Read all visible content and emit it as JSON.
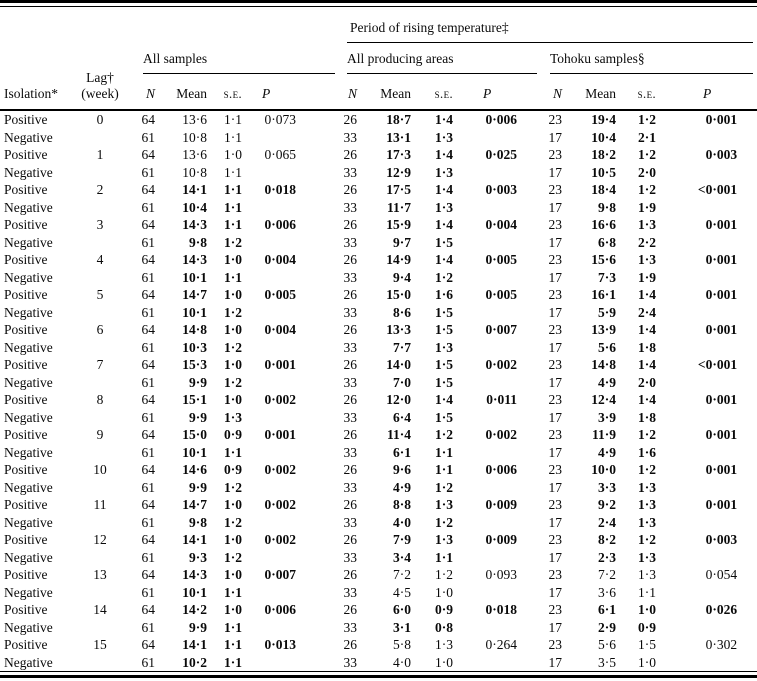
{
  "table": {
    "group_headers": {
      "period": "Period of rising temperature‡",
      "all_samples": "All samples",
      "producing": "All producing areas",
      "tohoku": "Tohoku samples§"
    },
    "col_headers": {
      "isolation": "Isolation*",
      "lag_line1": "Lag†",
      "lag_line2": "(week)",
      "n": "N",
      "mean": "Mean",
      "se": "s.e.",
      "p": "P"
    },
    "rows": [
      {
        "isolation": "Positive",
        "lag": "0",
        "all": {
          "n": "64",
          "mean": "13·6",
          "se": "1·1",
          "p": "0·073"
        },
        "producing": {
          "n": "26",
          "mean": "18·7",
          "se": "1·4",
          "p": "0·006"
        },
        "tohoku": {
          "n": "23",
          "mean": "19·4",
          "se": "1·2",
          "p": "0·001"
        },
        "bold": {
          "all": false,
          "producing": true,
          "tohoku": true
        }
      },
      {
        "isolation": "Negative",
        "lag": "",
        "all": {
          "n": "61",
          "mean": "10·8",
          "se": "1·1",
          "p": ""
        },
        "producing": {
          "n": "33",
          "mean": "13·1",
          "se": "1·3",
          "p": ""
        },
        "tohoku": {
          "n": "17",
          "mean": "10·4",
          "se": "2·1",
          "p": ""
        },
        "bold": {
          "all": false,
          "producing": true,
          "tohoku": true
        }
      },
      {
        "isolation": "Positive",
        "lag": "1",
        "all": {
          "n": "64",
          "mean": "13·6",
          "se": "1·0",
          "p": "0·065"
        },
        "producing": {
          "n": "26",
          "mean": "17·3",
          "se": "1·4",
          "p": "0·025"
        },
        "tohoku": {
          "n": "23",
          "mean": "18·2",
          "se": "1·2",
          "p": "0·003"
        },
        "bold": {
          "all": false,
          "producing": true,
          "tohoku": true
        }
      },
      {
        "isolation": "Negative",
        "lag": "",
        "all": {
          "n": "61",
          "mean": "10·8",
          "se": "1·1",
          "p": ""
        },
        "producing": {
          "n": "33",
          "mean": "12·9",
          "se": "1·3",
          "p": ""
        },
        "tohoku": {
          "n": "17",
          "mean": "10·5",
          "se": "2·0",
          "p": ""
        },
        "bold": {
          "all": false,
          "producing": true,
          "tohoku": true
        }
      },
      {
        "isolation": "Positive",
        "lag": "2",
        "all": {
          "n": "64",
          "mean": "14·1",
          "se": "1·1",
          "p": "0·018"
        },
        "producing": {
          "n": "26",
          "mean": "17·5",
          "se": "1·4",
          "p": "0·003"
        },
        "tohoku": {
          "n": "23",
          "mean": "18·4",
          "se": "1·2",
          "p": "<0·001"
        },
        "bold": {
          "all": true,
          "producing": true,
          "tohoku": true
        }
      },
      {
        "isolation": "Negative",
        "lag": "",
        "all": {
          "n": "61",
          "mean": "10·4",
          "se": "1·1",
          "p": ""
        },
        "producing": {
          "n": "33",
          "mean": "11·7",
          "se": "1·3",
          "p": ""
        },
        "tohoku": {
          "n": "17",
          "mean": "9·8",
          "se": "1·9",
          "p": ""
        },
        "bold": {
          "all": true,
          "producing": true,
          "tohoku": true
        }
      },
      {
        "isolation": "Positive",
        "lag": "3",
        "all": {
          "n": "64",
          "mean": "14·3",
          "se": "1·1",
          "p": "0·006"
        },
        "producing": {
          "n": "26",
          "mean": "15·9",
          "se": "1·4",
          "p": "0·004"
        },
        "tohoku": {
          "n": "23",
          "mean": "16·6",
          "se": "1·3",
          "p": "0·001"
        },
        "bold": {
          "all": true,
          "producing": true,
          "tohoku": true
        }
      },
      {
        "isolation": "Negative",
        "lag": "",
        "all": {
          "n": "61",
          "mean": "9·8",
          "se": "1·2",
          "p": ""
        },
        "producing": {
          "n": "33",
          "mean": "9·7",
          "se": "1·5",
          "p": ""
        },
        "tohoku": {
          "n": "17",
          "mean": "6·8",
          "se": "2·2",
          "p": ""
        },
        "bold": {
          "all": true,
          "producing": true,
          "tohoku": true
        }
      },
      {
        "isolation": "Positive",
        "lag": "4",
        "all": {
          "n": "64",
          "mean": "14·3",
          "se": "1·0",
          "p": "0·004"
        },
        "producing": {
          "n": "26",
          "mean": "14·9",
          "se": "1·4",
          "p": "0·005"
        },
        "tohoku": {
          "n": "23",
          "mean": "15·6",
          "se": "1·3",
          "p": "0·001"
        },
        "bold": {
          "all": true,
          "producing": true,
          "tohoku": true
        }
      },
      {
        "isolation": "Negative",
        "lag": "",
        "all": {
          "n": "61",
          "mean": "10·1",
          "se": "1·1",
          "p": ""
        },
        "producing": {
          "n": "33",
          "mean": "9·4",
          "se": "1·2",
          "p": ""
        },
        "tohoku": {
          "n": "17",
          "mean": "7·3",
          "se": "1·9",
          "p": ""
        },
        "bold": {
          "all": true,
          "producing": true,
          "tohoku": true
        }
      },
      {
        "isolation": "Positive",
        "lag": "5",
        "all": {
          "n": "64",
          "mean": "14·7",
          "se": "1·0",
          "p": "0·005"
        },
        "producing": {
          "n": "26",
          "mean": "15·0",
          "se": "1·6",
          "p": "0·005"
        },
        "tohoku": {
          "n": "23",
          "mean": "16·1",
          "se": "1·4",
          "p": "0·001"
        },
        "bold": {
          "all": true,
          "producing": true,
          "tohoku": true
        }
      },
      {
        "isolation": "Negative",
        "lag": "",
        "all": {
          "n": "61",
          "mean": "10·1",
          "se": "1·2",
          "p": ""
        },
        "producing": {
          "n": "33",
          "mean": "8·6",
          "se": "1·5",
          "p": ""
        },
        "tohoku": {
          "n": "17",
          "mean": "5·9",
          "se": "2·4",
          "p": ""
        },
        "bold": {
          "all": true,
          "producing": true,
          "tohoku": true
        }
      },
      {
        "isolation": "Positive",
        "lag": "6",
        "all": {
          "n": "64",
          "mean": "14·8",
          "se": "1·0",
          "p": "0·004"
        },
        "producing": {
          "n": "26",
          "mean": "13·3",
          "se": "1·5",
          "p": "0·007"
        },
        "tohoku": {
          "n": "23",
          "mean": "13·9",
          "se": "1·4",
          "p": "0·001"
        },
        "bold": {
          "all": true,
          "producing": true,
          "tohoku": true
        }
      },
      {
        "isolation": "Negative",
        "lag": "",
        "all": {
          "n": "61",
          "mean": "10·3",
          "se": "1·2",
          "p": ""
        },
        "producing": {
          "n": "33",
          "mean": "7·7",
          "se": "1·3",
          "p": ""
        },
        "tohoku": {
          "n": "17",
          "mean": "5·6",
          "se": "1·8",
          "p": ""
        },
        "bold": {
          "all": true,
          "producing": true,
          "tohoku": true
        }
      },
      {
        "isolation": "Positive",
        "lag": "7",
        "all": {
          "n": "64",
          "mean": "15·3",
          "se": "1·0",
          "p": "0·001"
        },
        "producing": {
          "n": "26",
          "mean": "14·0",
          "se": "1·5",
          "p": "0·002"
        },
        "tohoku": {
          "n": "23",
          "mean": "14·8",
          "se": "1·4",
          "p": "<0·001"
        },
        "bold": {
          "all": true,
          "producing": true,
          "tohoku": true
        }
      },
      {
        "isolation": "Negative",
        "lag": "",
        "all": {
          "n": "61",
          "mean": "9·9",
          "se": "1·2",
          "p": ""
        },
        "producing": {
          "n": "33",
          "mean": "7·0",
          "se": "1·5",
          "p": ""
        },
        "tohoku": {
          "n": "17",
          "mean": "4·9",
          "se": "2·0",
          "p": ""
        },
        "bold": {
          "all": true,
          "producing": true,
          "tohoku": true
        }
      },
      {
        "isolation": "Positive",
        "lag": "8",
        "all": {
          "n": "64",
          "mean": "15·1",
          "se": "1·0",
          "p": "0·002"
        },
        "producing": {
          "n": "26",
          "mean": "12·0",
          "se": "1·4",
          "p": "0·011"
        },
        "tohoku": {
          "n": "23",
          "mean": "12·4",
          "se": "1·4",
          "p": "0·001"
        },
        "bold": {
          "all": true,
          "producing": true,
          "tohoku": true
        }
      },
      {
        "isolation": "Negative",
        "lag": "",
        "all": {
          "n": "61",
          "mean": "9·9",
          "se": "1·3",
          "p": ""
        },
        "producing": {
          "n": "33",
          "mean": "6·4",
          "se": "1·5",
          "p": ""
        },
        "tohoku": {
          "n": "17",
          "mean": "3·9",
          "se": "1·8",
          "p": ""
        },
        "bold": {
          "all": true,
          "producing": true,
          "tohoku": true
        }
      },
      {
        "isolation": "Positive",
        "lag": "9",
        "all": {
          "n": "64",
          "mean": "15·0",
          "se": "0·9",
          "p": "0·001"
        },
        "producing": {
          "n": "26",
          "mean": "11·4",
          "se": "1·2",
          "p": "0·002"
        },
        "tohoku": {
          "n": "23",
          "mean": "11·9",
          "se": "1·2",
          "p": "0·001"
        },
        "bold": {
          "all": true,
          "producing": true,
          "tohoku": true
        }
      },
      {
        "isolation": "Negative",
        "lag": "",
        "all": {
          "n": "61",
          "mean": "10·1",
          "se": "1·1",
          "p": ""
        },
        "producing": {
          "n": "33",
          "mean": "6·1",
          "se": "1·1",
          "p": ""
        },
        "tohoku": {
          "n": "17",
          "mean": "4·9",
          "se": "1·6",
          "p": ""
        },
        "bold": {
          "all": true,
          "producing": true,
          "tohoku": true
        }
      },
      {
        "isolation": "Positive",
        "lag": "10",
        "all": {
          "n": "64",
          "mean": "14·6",
          "se": "0·9",
          "p": "0·002"
        },
        "producing": {
          "n": "26",
          "mean": "9·6",
          "se": "1·1",
          "p": "0·006"
        },
        "tohoku": {
          "n": "23",
          "mean": "10·0",
          "se": "1·2",
          "p": "0·001"
        },
        "bold": {
          "all": true,
          "producing": true,
          "tohoku": true
        }
      },
      {
        "isolation": "Negative",
        "lag": "",
        "all": {
          "n": "61",
          "mean": "9·9",
          "se": "1·2",
          "p": ""
        },
        "producing": {
          "n": "33",
          "mean": "4·9",
          "se": "1·2",
          "p": ""
        },
        "tohoku": {
          "n": "17",
          "mean": "3·3",
          "se": "1·3",
          "p": ""
        },
        "bold": {
          "all": true,
          "producing": true,
          "tohoku": true
        }
      },
      {
        "isolation": "Positive",
        "lag": "11",
        "all": {
          "n": "64",
          "mean": "14·7",
          "se": "1·0",
          "p": "0·002"
        },
        "producing": {
          "n": "26",
          "mean": "8·8",
          "se": "1·3",
          "p": "0·009"
        },
        "tohoku": {
          "n": "23",
          "mean": "9·2",
          "se": "1·3",
          "p": "0·001"
        },
        "bold": {
          "all": true,
          "producing": true,
          "tohoku": true
        }
      },
      {
        "isolation": "Negative",
        "lag": "",
        "all": {
          "n": "61",
          "mean": "9·8",
          "se": "1·2",
          "p": ""
        },
        "producing": {
          "n": "33",
          "mean": "4·0",
          "se": "1·2",
          "p": ""
        },
        "tohoku": {
          "n": "17",
          "mean": "2·4",
          "se": "1·3",
          "p": ""
        },
        "bold": {
          "all": true,
          "producing": true,
          "tohoku": true
        }
      },
      {
        "isolation": "Positive",
        "lag": "12",
        "all": {
          "n": "64",
          "mean": "14·1",
          "se": "1·0",
          "p": "0·002"
        },
        "producing": {
          "n": "26",
          "mean": "7·9",
          "se": "1·3",
          "p": "0·009"
        },
        "tohoku": {
          "n": "23",
          "mean": "8·2",
          "se": "1·2",
          "p": "0·003"
        },
        "bold": {
          "all": true,
          "producing": true,
          "tohoku": true
        }
      },
      {
        "isolation": "Negative",
        "lag": "",
        "all": {
          "n": "61",
          "mean": "9·3",
          "se": "1·2",
          "p": ""
        },
        "producing": {
          "n": "33",
          "mean": "3·4",
          "se": "1·1",
          "p": ""
        },
        "tohoku": {
          "n": "17",
          "mean": "2·3",
          "se": "1·3",
          "p": ""
        },
        "bold": {
          "all": true,
          "producing": true,
          "tohoku": true
        }
      },
      {
        "isolation": "Positive",
        "lag": "13",
        "all": {
          "n": "64",
          "mean": "14·3",
          "se": "1·0",
          "p": "0·007"
        },
        "producing": {
          "n": "26",
          "mean": "7·2",
          "se": "1·2",
          "p": "0·093"
        },
        "tohoku": {
          "n": "23",
          "mean": "7·2",
          "se": "1·3",
          "p": "0·054"
        },
        "bold": {
          "all": true,
          "producing": false,
          "tohoku": false
        }
      },
      {
        "isolation": "Negative",
        "lag": "",
        "all": {
          "n": "61",
          "mean": "10·1",
          "se": "1·1",
          "p": ""
        },
        "producing": {
          "n": "33",
          "mean": "4·5",
          "se": "1·0",
          "p": ""
        },
        "tohoku": {
          "n": "17",
          "mean": "3·6",
          "se": "1·1",
          "p": ""
        },
        "bold": {
          "all": true,
          "producing": false,
          "tohoku": false
        }
      },
      {
        "isolation": "Positive",
        "lag": "14",
        "all": {
          "n": "64",
          "mean": "14·2",
          "se": "1·0",
          "p": "0·006"
        },
        "producing": {
          "n": "26",
          "mean": "6·0",
          "se": "0·9",
          "p": "0·018"
        },
        "tohoku": {
          "n": "23",
          "mean": "6·1",
          "se": "1·0",
          "p": "0·026"
        },
        "bold": {
          "all": true,
          "producing": true,
          "tohoku": true
        }
      },
      {
        "isolation": "Negative",
        "lag": "",
        "all": {
          "n": "61",
          "mean": "9·9",
          "se": "1·1",
          "p": ""
        },
        "producing": {
          "n": "33",
          "mean": "3·1",
          "se": "0·8",
          "p": ""
        },
        "tohoku": {
          "n": "17",
          "mean": "2·9",
          "se": "0·9",
          "p": ""
        },
        "bold": {
          "all": true,
          "producing": true,
          "tohoku": true
        }
      },
      {
        "isolation": "Positive",
        "lag": "15",
        "all": {
          "n": "64",
          "mean": "14·1",
          "se": "1·1",
          "p": "0·013"
        },
        "producing": {
          "n": "26",
          "mean": "5·8",
          "se": "1·3",
          "p": "0·264"
        },
        "tohoku": {
          "n": "23",
          "mean": "5·6",
          "se": "1·5",
          "p": "0·302"
        },
        "bold": {
          "all": true,
          "producing": false,
          "tohoku": false
        }
      },
      {
        "isolation": "Negative",
        "lag": "",
        "all": {
          "n": "61",
          "mean": "10·2",
          "se": "1·1",
          "p": ""
        },
        "producing": {
          "n": "33",
          "mean": "4·0",
          "se": "1·0",
          "p": ""
        },
        "tohoku": {
          "n": "17",
          "mean": "3·5",
          "se": "1·0",
          "p": ""
        },
        "bold": {
          "all": true,
          "producing": false,
          "tohoku": false
        }
      }
    ]
  }
}
